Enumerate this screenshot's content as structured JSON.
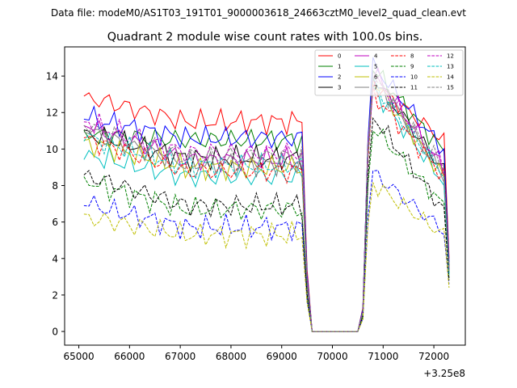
{
  "suptitle": "Data file: modeM0/AS1T03_191T01_9000003618_24663cztM0_level2_quad_clean.evt",
  "chart_data": {
    "type": "line",
    "title": "Quadrant 2 module wise count rates with 100.0s bins.",
    "xlabel": "",
    "ylabel": "",
    "x_offset_label": "+3.25e8",
    "xlim": [
      64720,
      72620
    ],
    "ylim": [
      -0.75,
      15.6
    ],
    "xticks": [
      65000,
      66000,
      67000,
      68000,
      69000,
      70000,
      71000,
      72000
    ],
    "xtick_labels": [
      "65000",
      "66000",
      "67000",
      "68000",
      "69000",
      "70000",
      "71000",
      "72000"
    ],
    "yticks": [
      0,
      2,
      4,
      6,
      8,
      10,
      12,
      14
    ],
    "ytick_labels": [
      "0",
      "2",
      "4",
      "6",
      "8",
      "10",
      "12",
      "14"
    ],
    "grid": false,
    "legend_position": "top-right",
    "legend_columns": 4,
    "x_start": 65100,
    "x_step": 100,
    "gap_start_index": 44,
    "gap_end_index": 55,
    "series": [
      {
        "name": "0",
        "color": "#ff0000",
        "dashed": false,
        "pre": 11.5,
        "post": 13.1,
        "start": 12.9,
        "after_gap": 13.6,
        "end": 4.0
      },
      {
        "name": "1",
        "color": "#008000",
        "dashed": false,
        "pre": 10.5,
        "post": 12.3,
        "start": 10.8,
        "after_gap": 14.4,
        "end": 3.6
      },
      {
        "name": "2",
        "color": "#0000ff",
        "dashed": false,
        "pre": 10.6,
        "post": 12.4,
        "start": 11.7,
        "after_gap": 14.6,
        "end": 3.8
      },
      {
        "name": "3",
        "color": "#000000",
        "dashed": false,
        "pre": 9.5,
        "post": 11.0,
        "start": 10.9,
        "after_gap": 14.0,
        "end": 3.4
      },
      {
        "name": "4",
        "color": "#bf00bf",
        "dashed": false,
        "pre": 9.4,
        "post": 11.1,
        "start": 11.3,
        "after_gap": 14.3,
        "end": 3.3
      },
      {
        "name": "5",
        "color": "#00bfbf",
        "dashed": false,
        "pre": 8.5,
        "post": 10.2,
        "start": 9.7,
        "after_gap": 13.3,
        "end": 3.1
      },
      {
        "name": "6",
        "color": "#bfbf00",
        "dashed": false,
        "pre": 9.0,
        "post": 10.5,
        "start": 10.4,
        "after_gap": 13.8,
        "end": 3.2
      },
      {
        "name": "7",
        "color": "#808080",
        "dashed": false,
        "pre": 9.2,
        "post": 10.6,
        "start": 11.0,
        "after_gap": 14.1,
        "end": 3.3
      },
      {
        "name": "8",
        "color": "#ff0000",
        "dashed": true,
        "pre": 8.8,
        "post": 10.6,
        "start": 10.6,
        "after_gap": 13.0,
        "end": 3.4
      },
      {
        "name": "9",
        "color": "#008000",
        "dashed": true,
        "pre": 6.7,
        "post": 8.6,
        "start": 8.2,
        "after_gap": 11.2,
        "end": 2.9
      },
      {
        "name": "10",
        "color": "#0000ff",
        "dashed": true,
        "pre": 5.7,
        "post": 6.9,
        "start": 7.0,
        "after_gap": 8.7,
        "end": 2.6
      },
      {
        "name": "11",
        "color": "#000000",
        "dashed": true,
        "pre": 6.9,
        "post": 8.3,
        "start": 8.6,
        "after_gap": 11.8,
        "end": 2.8
      },
      {
        "name": "12",
        "color": "#bf00bf",
        "dashed": true,
        "pre": 9.8,
        "post": 11.3,
        "start": 11.5,
        "after_gap": 13.9,
        "end": 3.5
      },
      {
        "name": "13",
        "color": "#00bfbf",
        "dashed": true,
        "pre": 9.1,
        "post": 10.8,
        "start": 10.7,
        "after_gap": 13.6,
        "end": 3.2
      },
      {
        "name": "14",
        "color": "#bfbf00",
        "dashed": true,
        "pre": 5.3,
        "post": 6.6,
        "start": 6.3,
        "after_gap": 8.1,
        "end": 2.4
      },
      {
        "name": "15",
        "color": "#808080",
        "dashed": true,
        "pre": 9.6,
        "post": 11.2,
        "start": 11.2,
        "after_gap": 13.9,
        "end": 3.4
      }
    ]
  }
}
